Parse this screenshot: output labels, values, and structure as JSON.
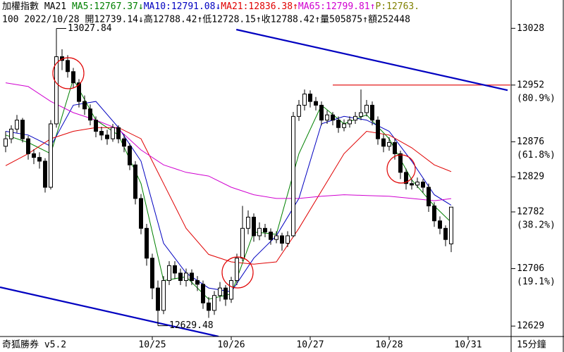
{
  "chart_data": {
    "type": "candlestick",
    "title": "加權指數 MA21",
    "header_items": [
      {
        "text": "MA5:12767.37↓",
        "color": "#008000"
      },
      {
        "text": "MA10:12791.08↓",
        "color": "#0000c0"
      },
      {
        "text": "MA21:12836.38↑",
        "color": "#e00000"
      },
      {
        "text": "MA65:12799.81↑",
        "color": "#d000d0"
      },
      {
        "text": "P:12763.",
        "color": "#808000"
      }
    ],
    "info_line": "100 2022/10/28 開12739.14↓高12788.42↑低12728.15↑收12788.42↑量505875↑額252448",
    "footer_left": "奇狐勝券 v5.2",
    "footer_right": "15分鐘",
    "xlim": [
      -1,
      89
    ],
    "ylim": [
      12615,
      13066
    ],
    "yticks": [
      13028,
      12952,
      12876,
      12829,
      12782,
      12706,
      12629
    ],
    "ytick_notes": [
      {
        "value": 12952,
        "label": "(80.9%)"
      },
      {
        "value": 12876,
        "label": "(61.8%)"
      },
      {
        "value": 12782,
        "label": "(38.2%)"
      },
      {
        "value": 12706,
        "label": "(19.1%)"
      }
    ],
    "xticks": [
      {
        "value": 26,
        "label": "10/25"
      },
      {
        "value": 40,
        "label": "10/26"
      },
      {
        "value": 54,
        "label": "10/27"
      },
      {
        "value": 68,
        "label": "10/28"
      },
      {
        "value": 82,
        "label": "10/31"
      }
    ],
    "up_color": "#ffffff",
    "down_color": "#000000",
    "open": [
      12870,
      12880,
      12893,
      12905,
      12880,
      12860,
      12855,
      12850,
      12815,
      12900,
      12990,
      12985,
      12970,
      12955,
      12930,
      12920,
      12905,
      12890,
      12885,
      12880,
      12895,
      12880,
      12870,
      12845,
      12800,
      12760,
      12720,
      12680,
      12650,
      12690,
      12710,
      12700,
      12690,
      12700,
      12690,
      12685,
      12660,
      12650,
      12670,
      12680,
      12665,
      12690,
      12720,
      12760,
      12775,
      12750,
      12760,
      12755,
      12745,
      12750,
      12740,
      12750,
      12910,
      12925,
      12940,
      12930,
      12925,
      12905,
      12912,
      12905,
      12895,
      12900,
      12905,
      12910,
      12915,
      12925,
      12905,
      12880,
      12870,
      12875,
      12860,
      12835,
      12820,
      12818,
      12822,
      12815,
      12790,
      12770,
      12760,
      12739.14
    ],
    "high": [
      12890,
      12898,
      12912,
      12908,
      12884,
      12866,
      12862,
      12854,
      12905,
      13027.84,
      13000,
      12992,
      12975,
      12960,
      12938,
      12926,
      12910,
      12896,
      12892,
      12900,
      12898,
      12886,
      12874,
      12850,
      12806,
      12766,
      12726,
      12690,
      12696,
      12716,
      12716,
      12706,
      12706,
      12705,
      12696,
      12690,
      12668,
      12676,
      12688,
      12684,
      12695,
      12726,
      12790,
      12784,
      12780,
      12768,
      12766,
      12760,
      12756,
      12754,
      12756,
      12916,
      12932,
      12946,
      12945,
      12936,
      12930,
      12918,
      12916,
      12910,
      12906,
      12910,
      12916,
      12946,
      12932,
      12930,
      12910,
      12886,
      12882,
      12880,
      12864,
      12840,
      12826,
      12828,
      12826,
      12820,
      12795,
      12776,
      12764,
      12788.42
    ],
    "low": [
      12862,
      12874,
      12888,
      12875,
      12852,
      12846,
      12840,
      12808,
      12812,
      12895,
      12972,
      12962,
      12948,
      12922,
      12912,
      12898,
      12882,
      12878,
      12872,
      12876,
      12874,
      12862,
      12838,
      12792,
      12752,
      12710,
      12665,
      12629.48,
      12645,
      12684,
      12692,
      12684,
      12682,
      12684,
      12676,
      12652,
      12640,
      12644,
      12662,
      12656,
      12660,
      12684,
      12716,
      12752,
      12742,
      12744,
      12748,
      12738,
      12740,
      12730,
      12735,
      12748,
      12904,
      12918,
      12922,
      12918,
      12898,
      12900,
      12898,
      12888,
      12890,
      12895,
      12900,
      12905,
      12910,
      12898,
      12872,
      12862,
      12864,
      12852,
      12826,
      12812,
      12812,
      12814,
      12808,
      12782,
      12762,
      12752,
      12736,
      12728.15
    ],
    "close": [
      12880,
      12893,
      12905,
      12880,
      12860,
      12855,
      12850,
      12815,
      12900,
      12990,
      12985,
      12970,
      12955,
      12930,
      12920,
      12905,
      12890,
      12885,
      12880,
      12895,
      12880,
      12870,
      12845,
      12800,
      12760,
      12720,
      12680,
      12650,
      12690,
      12710,
      12700,
      12690,
      12700,
      12690,
      12685,
      12660,
      12650,
      12670,
      12680,
      12665,
      12690,
      12720,
      12760,
      12775,
      12750,
      12760,
      12755,
      12745,
      12750,
      12740,
      12750,
      12910,
      12925,
      12940,
      12930,
      12925,
      12905,
      12912,
      12905,
      12895,
      12900,
      12905,
      12910,
      12915,
      12925,
      12905,
      12880,
      12870,
      12875,
      12860,
      12835,
      12820,
      12818,
      12822,
      12815,
      12790,
      12770,
      12760,
      12745,
      12788.42
    ],
    "series": [
      {
        "name": "MA5",
        "color": "#008000",
        "x": [
          0,
          4,
          8,
          12,
          16,
          20,
          24,
          28,
          32,
          36,
          40,
          44,
          48,
          52,
          56,
          60,
          64,
          68,
          72,
          76,
          79
        ],
        "values": [
          12885,
          12875,
          12860,
          12960,
          12905,
          12885,
          12820,
          12690,
          12695,
          12665,
          12672,
          12755,
          12752,
          12860,
          12925,
          12900,
          12912,
          12880,
          12825,
          12790,
          12768
        ]
      },
      {
        "name": "MA10",
        "color": "#0000c0",
        "x": [
          0,
          4,
          8,
          12,
          16,
          20,
          24,
          28,
          32,
          36,
          40,
          44,
          48,
          52,
          56,
          60,
          64,
          68,
          72,
          76,
          79
        ],
        "values": [
          12890,
          12885,
          12870,
          12925,
          12930,
          12895,
          12850,
          12740,
          12700,
          12680,
          12675,
          12720,
          12750,
          12800,
          12900,
          12910,
          12905,
          12890,
          12850,
          12805,
          12791
        ]
      },
      {
        "name": "MA21",
        "color": "#e00000",
        "x": [
          0,
          4,
          8,
          12,
          16,
          20,
          24,
          28,
          32,
          36,
          40,
          44,
          48,
          52,
          56,
          60,
          64,
          68,
          72,
          76,
          79
        ],
        "values": [
          12844,
          12860,
          12880,
          12890,
          12895,
          12895,
          12880,
          12820,
          12760,
          12725,
          12715,
          12712,
          12715,
          12760,
          12810,
          12860,
          12890,
          12885,
          12868,
          12845,
          12836
        ]
      },
      {
        "name": "MA65",
        "color": "#d000d0",
        "x": [
          0,
          4,
          8,
          12,
          16,
          20,
          24,
          28,
          32,
          36,
          40,
          44,
          48,
          52,
          56,
          60,
          64,
          68,
          72,
          76,
          79
        ],
        "values": [
          12955,
          12950,
          12930,
          12915,
          12905,
          12893,
          12865,
          12845,
          12835,
          12830,
          12815,
          12805,
          12800,
          12800,
          12803,
          12805,
          12804,
          12803,
          12800,
          12797,
          12799.81
        ]
      }
    ],
    "trendlines": [
      {
        "color": "#0000c0",
        "x": [
          40.9,
          89
        ],
        "y": [
          13026.4,
          12945
        ]
      },
      {
        "color": "#0000c0",
        "x": [
          -1,
          37.75
        ],
        "y": [
          12681,
          12615
        ]
      }
    ],
    "hlines": [
      {
        "color": "#e00000",
        "y": 12952,
        "x": [
          58,
          99
        ]
      }
    ],
    "annotations": [
      {
        "x": 9,
        "y": 13027.84,
        "text": "13027.84"
      },
      {
        "x": 27,
        "y": 12629.48,
        "text": "12629.48"
      }
    ]
  }
}
